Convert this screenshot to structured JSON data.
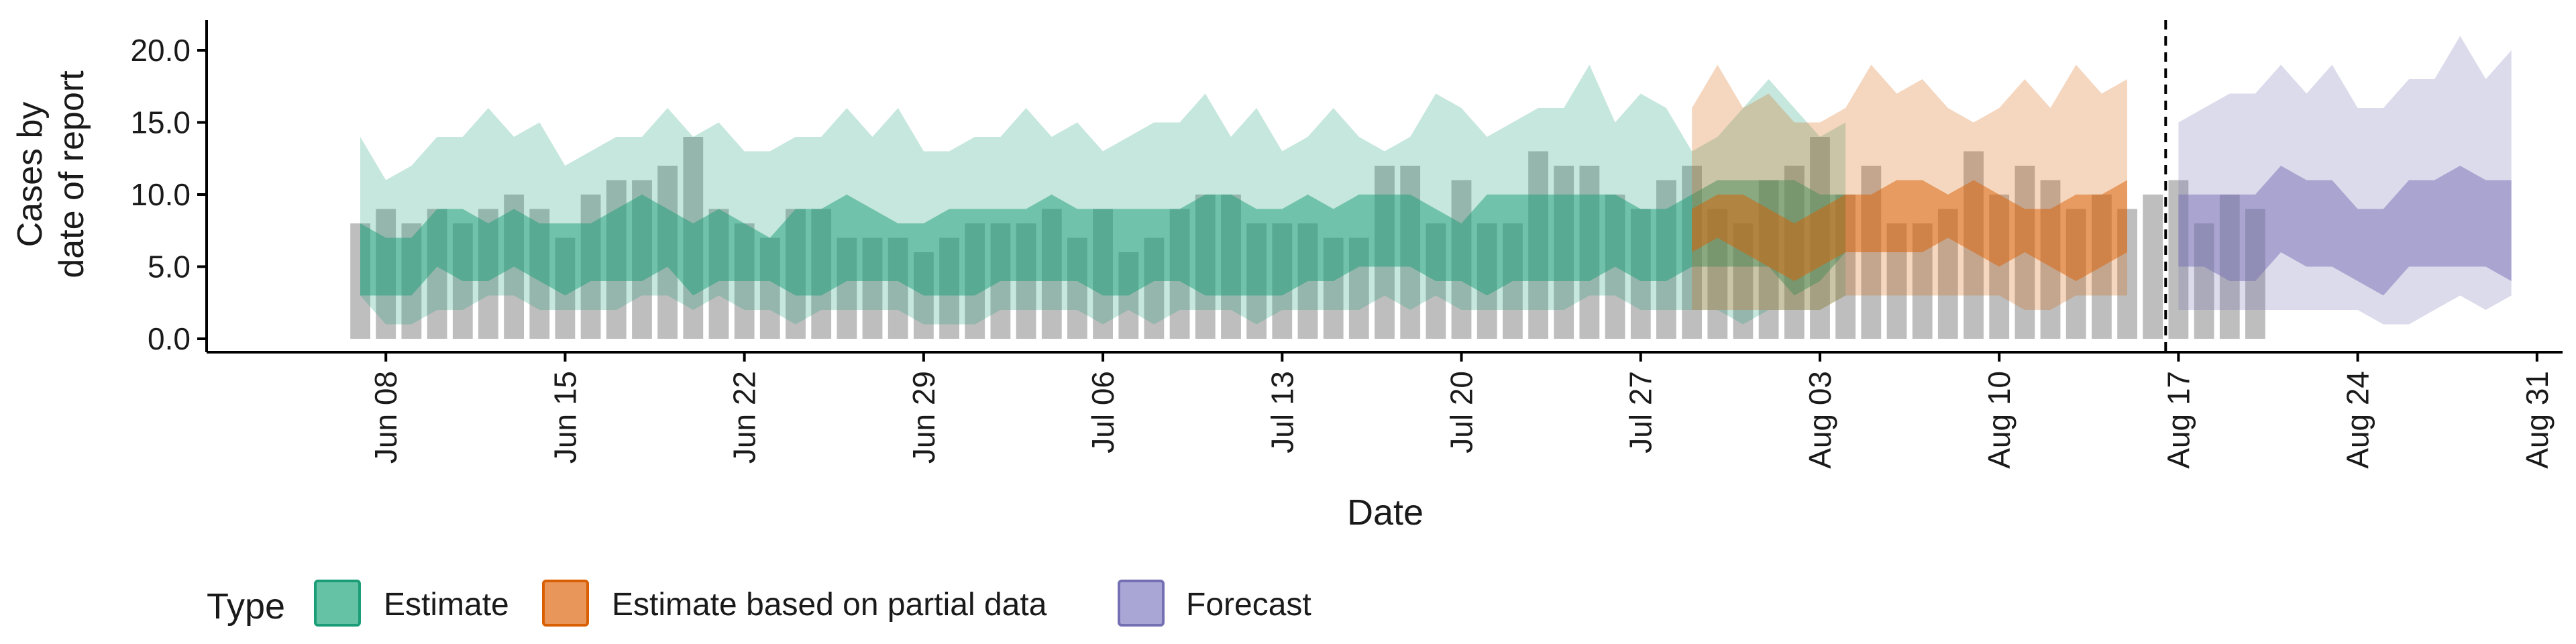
{
  "chart_data": {
    "type": "area",
    "xlabel": "Date",
    "ylabel_lines": [
      "Cases by",
      "date of report"
    ],
    "ylim": [
      0,
      22
    ],
    "xlim": [
      "2020-06-01",
      "2020-09-01"
    ],
    "y_ticks": [
      {
        "value": 0,
        "label": "0.0"
      },
      {
        "value": 5,
        "label": "5.0"
      },
      {
        "value": 10,
        "label": "10.0"
      },
      {
        "value": 15,
        "label": "15.0"
      },
      {
        "value": 20,
        "label": "20.0"
      }
    ],
    "x_ticks": [
      {
        "date": "2020-06-08",
        "label": "Jun 08"
      },
      {
        "date": "2020-06-15",
        "label": "Jun 15"
      },
      {
        "date": "2020-06-22",
        "label": "Jun 22"
      },
      {
        "date": "2020-06-29",
        "label": "Jun 29"
      },
      {
        "date": "2020-07-06",
        "label": "Jul 06"
      },
      {
        "date": "2020-07-13",
        "label": "Jul 13"
      },
      {
        "date": "2020-07-20",
        "label": "Jul 20"
      },
      {
        "date": "2020-07-27",
        "label": "Jul 27"
      },
      {
        "date": "2020-08-03",
        "label": "Aug 03"
      },
      {
        "date": "2020-08-10",
        "label": "Aug 10"
      },
      {
        "date": "2020-08-17",
        "label": "Aug 17"
      },
      {
        "date": "2020-08-24",
        "label": "Aug 24"
      },
      {
        "date": "2020-08-31",
        "label": "Aug 31"
      }
    ],
    "vline_date": "2020-08-16",
    "legend": {
      "title": "Type",
      "position": "bottom",
      "items": [
        {
          "label": "Estimate",
          "fill": "#66c2a5",
          "stroke": "#1b9e77"
        },
        {
          "label": "Estimate based on partial data",
          "fill": "#e8965a",
          "stroke": "#d95f02"
        },
        {
          "label": "Forecast",
          "fill": "#a9a6d6",
          "stroke": "#7570b3"
        }
      ]
    },
    "reported_cases": {
      "start_date": "2020-06-07",
      "color": "#bebebe",
      "values": [
        8,
        9,
        8,
        9,
        8,
        9,
        10,
        9,
        7,
        10,
        11,
        11,
        12,
        14,
        9,
        8,
        7,
        9,
        9,
        7,
        7,
        7,
        6,
        7,
        8,
        8,
        8,
        9,
        7,
        9,
        6,
        7,
        9,
        10,
        10,
        8,
        8,
        8,
        7,
        7,
        12,
        12,
        8,
        11,
        8,
        8,
        13,
        12,
        12,
        10,
        9,
        11,
        12,
        9,
        8,
        11,
        12,
        14,
        10,
        12,
        8,
        8,
        9,
        13,
        10,
        12,
        11,
        9,
        10,
        9,
        10,
        11,
        8,
        10,
        9
      ]
    },
    "series": [
      {
        "name": "Estimate",
        "start_date": "2020-06-07",
        "fill": "#1b9e77",
        "outer_lower": [
          3,
          1,
          1,
          2,
          2,
          3,
          3,
          2,
          2,
          2,
          2,
          3,
          3,
          2,
          3,
          2,
          2,
          1,
          2,
          2,
          2,
          2,
          1,
          1,
          1,
          2,
          2,
          2,
          2,
          1,
          2,
          1,
          2,
          2,
          2,
          1,
          2,
          2,
          2,
          2,
          3,
          2,
          3,
          2,
          2,
          2,
          2,
          2,
          3,
          3,
          2,
          2,
          2,
          2,
          1,
          2,
          2,
          2,
          3
        ],
        "inner_lower": [
          3,
          3,
          3,
          5,
          4,
          4,
          5,
          4,
          3,
          4,
          4,
          4,
          5,
          3,
          4,
          4,
          4,
          3,
          3,
          4,
          4,
          4,
          3,
          3,
          3,
          4,
          4,
          4,
          4,
          3,
          3,
          4,
          4,
          3,
          3,
          3,
          3,
          4,
          4,
          5,
          5,
          5,
          4,
          4,
          3,
          4,
          4,
          4,
          4,
          5,
          4,
          4,
          5,
          5,
          5,
          5,
          3,
          4,
          6
        ],
        "inner_upper": [
          8,
          7,
          7,
          9,
          9,
          8,
          9,
          8,
          8,
          8,
          9,
          10,
          9,
          8,
          9,
          8,
          7,
          9,
          9,
          10,
          9,
          8,
          8,
          9,
          9,
          9,
          9,
          10,
          9,
          9,
          9,
          9,
          9,
          10,
          10,
          9,
          9,
          10,
          9,
          10,
          10,
          10,
          9,
          8,
          10,
          10,
          10,
          10,
          10,
          10,
          9,
          9,
          10,
          11,
          11,
          11,
          11,
          10,
          10
        ],
        "outer_upper": [
          14,
          11,
          12,
          14,
          14,
          16,
          14,
          15,
          12,
          13,
          14,
          14,
          16,
          14,
          15,
          13,
          13,
          14,
          14,
          16,
          14,
          16,
          13,
          13,
          14,
          14,
          16,
          14,
          15,
          13,
          14,
          15,
          15,
          17,
          14,
          16,
          13,
          14,
          16,
          14,
          13,
          14,
          17,
          16,
          14,
          15,
          16,
          16,
          19,
          15,
          17,
          16,
          13,
          14,
          16,
          18,
          16,
          14,
          15
        ]
      },
      {
        "name": "Estimate based on partial data",
        "start_date": "2020-07-29",
        "fill": "#d95f02",
        "outer_lower": [
          2,
          2,
          2,
          2,
          2,
          2,
          3,
          3,
          3,
          3,
          3,
          3,
          3,
          2,
          2,
          3,
          3,
          3
        ],
        "inner_lower": [
          6,
          7,
          6,
          5,
          4,
          5,
          6,
          6,
          6,
          6,
          7,
          6,
          5,
          6,
          5,
          4,
          5,
          6
        ],
        "inner_upper": [
          9,
          10,
          10,
          9,
          8,
          9,
          10,
          10,
          11,
          11,
          10,
          11,
          10,
          9,
          9,
          10,
          10,
          11
        ],
        "outer_upper": [
          16,
          19,
          16,
          17,
          15,
          15,
          16,
          19,
          17,
          18,
          16,
          15,
          16,
          18,
          16,
          19,
          17,
          18
        ]
      },
      {
        "name": "Forecast",
        "start_date": "2020-08-17",
        "fill": "#7570b3",
        "outer_lower": [
          2,
          2,
          2,
          2,
          2,
          2,
          2,
          2,
          1,
          1,
          2,
          3,
          2,
          3
        ],
        "inner_lower": [
          5,
          5,
          4,
          4,
          6,
          5,
          5,
          4,
          3,
          5,
          5,
          5,
          5,
          4
        ],
        "inner_upper": [
          10,
          10,
          10,
          10,
          12,
          11,
          11,
          9,
          9,
          11,
          11,
          12,
          11,
          11
        ],
        "outer_upper": [
          15,
          16,
          17,
          17,
          19,
          17,
          19,
          16,
          16,
          18,
          18,
          21,
          18,
          20
        ]
      }
    ]
  }
}
